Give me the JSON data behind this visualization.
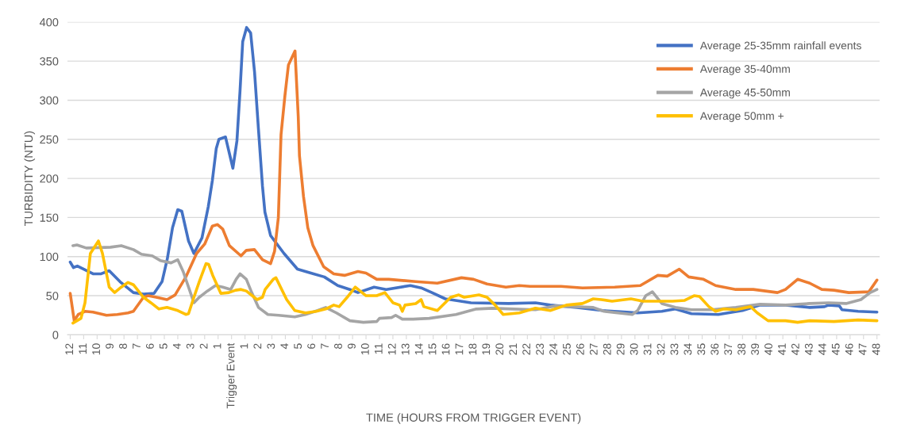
{
  "chart_data": {
    "type": "line",
    "xlabel": "TIME (HOURS FROM TRIGGER EVENT)",
    "ylabel": "TURBIDITY (NTU)",
    "xlim": [
      -12.2,
      48.2
    ],
    "ylim": [
      0,
      400
    ],
    "yticks": [
      0,
      50,
      100,
      150,
      200,
      250,
      300,
      350,
      400
    ],
    "xticks": [
      {
        "value": -12,
        "label": "12"
      },
      {
        "value": -11,
        "label": "11"
      },
      {
        "value": -10,
        "label": "10"
      },
      {
        "value": -9,
        "label": "9"
      },
      {
        "value": -8,
        "label": "8"
      },
      {
        "value": -7,
        "label": "7"
      },
      {
        "value": -6,
        "label": "6"
      },
      {
        "value": -5,
        "label": "5"
      },
      {
        "value": -4,
        "label": "4"
      },
      {
        "value": -3,
        "label": "3"
      },
      {
        "value": -2,
        "label": "2"
      },
      {
        "value": -1,
        "label": "1"
      },
      {
        "value": 0,
        "label": "Trigger Event"
      },
      1,
      2,
      3,
      4,
      5,
      6,
      7,
      8,
      9,
      10,
      11,
      12,
      13,
      14,
      15,
      16,
      17,
      18,
      19,
      20,
      21,
      22,
      23,
      24,
      25,
      26,
      27,
      28,
      29,
      30,
      31,
      32,
      33,
      34,
      35,
      36,
      37,
      38,
      39,
      40,
      41,
      42,
      43,
      44,
      45,
      46,
      47,
      48
    ],
    "grid": "y",
    "legend": "top right",
    "marker": "none",
    "line_style": "solid",
    "series": [
      {
        "name": "Average 25-35mm rainfall events",
        "color": "#4472c4",
        "x": [
          -12.0,
          -11.76,
          -11.47,
          -10.3,
          -9.7,
          -9.1,
          -8.3,
          -7.3,
          -6.55,
          -5.76,
          -5.17,
          -4.78,
          -4.39,
          -4.0,
          -3.7,
          -3.2,
          -2.8,
          -2.2,
          -1.73,
          -1.43,
          -1.14,
          -0.94,
          -0.45,
          0.1,
          0.4,
          0.63,
          0.83,
          1.12,
          1.42,
          1.71,
          2.0,
          2.3,
          2.48,
          2.9,
          3.9,
          4.9,
          5.9,
          6.9,
          7.9,
          8.8,
          9.4,
          10.6,
          11.5,
          13.3,
          14.1,
          14.9,
          15.9,
          17.8,
          20.6,
          22.6,
          23.7,
          25.7,
          27.6,
          29.4,
          30.2,
          32.0,
          33.0,
          34.2,
          36.2,
          38.0,
          39.3,
          41.2,
          43.0,
          44.1,
          44.4,
          45.2,
          45.4,
          46.6,
          48.0
        ],
        "values": [
          93,
          86,
          88,
          78,
          78,
          82,
          68,
          54,
          52,
          53,
          68,
          97,
          137,
          160,
          158,
          120,
          104,
          124,
          164,
          197,
          238,
          250,
          253,
          213,
          248,
          312,
          375,
          393,
          386,
          336,
          263,
          190,
          157,
          127,
          104,
          84,
          79,
          74,
          63,
          58,
          54,
          61,
          58,
          63,
          60,
          54,
          46,
          41,
          40,
          41,
          38,
          35,
          31,
          29,
          28,
          30,
          33,
          27,
          26,
          31,
          38,
          38,
          35,
          36,
          38,
          37,
          32,
          30,
          29
        ]
      },
      {
        "name": "Average 35-40mm",
        "color": "#ed7d31",
        "x": [
          -12.0,
          -11.7,
          -11.4,
          -10.9,
          -10.3,
          -9.3,
          -8.5,
          -7.7,
          -7.3,
          -6.55,
          -6.2,
          -5.6,
          -4.8,
          -4.2,
          -3.4,
          -2.6,
          -2.0,
          -1.43,
          -1.04,
          -0.65,
          -0.16,
          0.7,
          1.1,
          1.7,
          2.3,
          2.9,
          3.2,
          3.48,
          3.68,
          3.97,
          4.23,
          4.72,
          4.96,
          5.05,
          5.35,
          5.67,
          6.06,
          6.85,
          7.6,
          8.4,
          9.4,
          10.0,
          10.8,
          11.7,
          13.7,
          15.3,
          17.1,
          18.0,
          19.0,
          20.4,
          21.4,
          22.2,
          24.5,
          26.1,
          28.5,
          30.4,
          31.7,
          32.4,
          33.3,
          34.0,
          35.1,
          36.0,
          37.5,
          38.8,
          40.6,
          41.2,
          42.1,
          43.0,
          43.9,
          44.8,
          45.9,
          47.4,
          48.0
        ],
        "values": [
          53,
          18,
          26,
          30,
          29,
          25,
          26,
          28,
          30,
          48,
          50,
          48,
          45,
          51,
          74,
          104,
          116,
          139,
          141,
          135,
          114,
          101,
          108,
          109,
          96,
          91,
          107,
          150,
          256,
          306,
          345,
          363,
          279,
          229,
          177,
          137,
          114,
          87,
          78,
          76,
          81,
          79,
          71,
          71,
          68,
          66,
          73,
          71,
          65,
          61,
          63,
          62,
          62,
          60,
          61,
          63,
          76,
          75,
          84,
          74,
          71,
          63,
          58,
          58,
          54,
          58,
          71,
          66,
          58,
          57,
          54,
          55,
          70
        ]
      },
      {
        "name": "Average 45-50mm",
        "color": "#a5a5a5",
        "x": [
          -11.8,
          -11.5,
          -10.8,
          -9.0,
          -8.2,
          -7.3,
          -6.7,
          -5.9,
          -5.3,
          -4.5,
          -4.0,
          -3.6,
          -2.8,
          -2.4,
          -1.8,
          -1.2,
          -0.65,
          -0.06,
          0.34,
          0.63,
          1.1,
          1.5,
          2.0,
          2.7,
          3.5,
          4.7,
          5.5,
          6.4,
          7.0,
          7.8,
          8.8,
          9.8,
          10.8,
          11.0,
          11.9,
          12.2,
          12.7,
          13.5,
          14.7,
          16.7,
          18.2,
          19.4,
          21.0,
          22.6,
          24.1,
          25.5,
          26.9,
          27.7,
          29.8,
          30.2,
          30.8,
          31.3,
          32.0,
          33.0,
          34.2,
          35.7,
          37.5,
          39.3,
          41.2,
          43.0,
          44.4,
          45.7,
          46.8,
          47.5,
          48.0
        ],
        "values": [
          114,
          115,
          111,
          112,
          114,
          109,
          103,
          101,
          95,
          92,
          96,
          81,
          41,
          48,
          56,
          63,
          61,
          58,
          71,
          78,
          71,
          54,
          35,
          26,
          25,
          23,
          26,
          31,
          35,
          28,
          18,
          16,
          17,
          21,
          22,
          25,
          20,
          20,
          21,
          26,
          33,
          34,
          33,
          32,
          37,
          36,
          35,
          30,
          26,
          31,
          50,
          55,
          40,
          35,
          32,
          32,
          35,
          39,
          38,
          40,
          41,
          40,
          45,
          54,
          58
        ]
      },
      {
        "name": "Average 50mm +",
        "color": "#ffc000",
        "x": [
          -11.8,
          -11.2,
          -10.9,
          -10.5,
          -9.9,
          -9.6,
          -9.1,
          -8.7,
          -8.2,
          -7.7,
          -7.3,
          -6.55,
          -6.0,
          -5.4,
          -4.8,
          -4.0,
          -3.4,
          -3.2,
          -2.8,
          -2.4,
          -1.9,
          -1.7,
          -1.4,
          -0.8,
          -0.2,
          0.3,
          0.7,
          1.1,
          1.9,
          2.3,
          2.5,
          3.1,
          3.3,
          4.1,
          4.7,
          5.5,
          6.3,
          7.0,
          7.6,
          8.0,
          8.6,
          9.2,
          10.0,
          10.8,
          11.4,
          12.0,
          12.5,
          12.7,
          12.9,
          13.7,
          14.1,
          14.3,
          15.3,
          16.3,
          16.9,
          17.3,
          18.4,
          19.0,
          19.6,
          20.2,
          21.4,
          22.6,
          23.7,
          24.9,
          26.1,
          26.9,
          27.5,
          28.3,
          29.7,
          30.6,
          32.8,
          33.7,
          34.4,
          34.8,
          35.5,
          36.0,
          36.6,
          37.5,
          38.6,
          39.1,
          39.9,
          41.2,
          42.1,
          43.0,
          44.8,
          46.6,
          48.0
        ],
        "values": [
          15,
          21,
          41,
          104,
          120,
          104,
          61,
          54,
          61,
          67,
          64,
          48,
          41,
          33,
          35,
          31,
          26,
          27,
          48,
          68,
          91,
          90,
          76,
          53,
          54,
          57,
          58,
          56,
          45,
          48,
          58,
          71,
          73,
          45,
          31,
          28,
          30,
          33,
          38,
          36,
          48,
          61,
          50,
          50,
          54,
          41,
          38,
          30,
          38,
          40,
          45,
          36,
          31,
          48,
          51,
          48,
          51,
          48,
          38,
          26,
          28,
          34,
          31,
          38,
          40,
          46,
          45,
          43,
          46,
          43,
          43,
          44,
          50,
          49,
          36,
          30,
          33,
          32,
          36,
          28,
          18,
          18,
          16,
          18,
          17,
          19,
          18
        ]
      }
    ]
  }
}
